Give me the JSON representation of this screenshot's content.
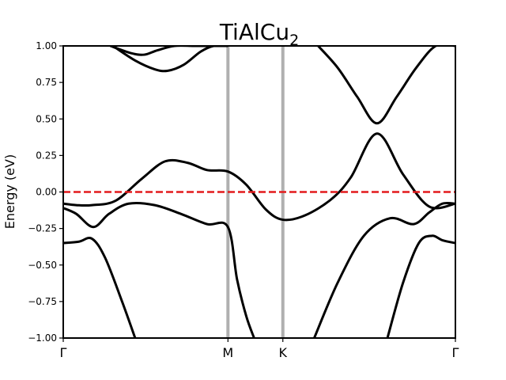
{
  "chart_data": {
    "type": "line",
    "title": "TiAlCu",
    "title_subscript": "2",
    "ylabel": "Energy (eV)",
    "xlabel": "",
    "ylim": [
      -1.0,
      1.0
    ],
    "y_ticks": [
      "1.00",
      "0.75",
      "0.50",
      "0.25",
      "0.00",
      "−0.25",
      "−0.50",
      "−0.75",
      "−1.00"
    ],
    "y_tick_values": [
      1.0,
      0.75,
      0.5,
      0.25,
      0.0,
      -0.25,
      -0.5,
      -0.75,
      -1.0
    ],
    "xlim": [
      0.0,
      3.0
    ],
    "x_ticks": [
      {
        "label": "Γ",
        "value": 0.0
      },
      {
        "label": "M",
        "value": 1.26
      },
      {
        "label": "K",
        "value": 1.68
      },
      {
        "label": "Γ",
        "value": 3.0
      }
    ],
    "fermi_level": 0.0,
    "colors": {
      "bands": "#000000",
      "fermi": "#e31a1c",
      "kpath_lines": "#b0b0b0"
    },
    "series": [
      {
        "x": [
          0.0,
          0.1,
          0.22,
          0.4,
          0.6,
          0.78,
          0.95,
          1.1,
          1.26,
          1.4,
          1.55,
          1.68,
          1.85,
          2.05,
          2.2,
          2.4,
          2.6,
          2.8,
          3.0
        ],
        "values": [
          -0.08,
          -0.09,
          -0.09,
          -0.06,
          0.09,
          0.21,
          0.2,
          0.15,
          0.14,
          0.05,
          -0.12,
          -0.19,
          -0.16,
          -0.05,
          0.1,
          0.4,
          0.12,
          -0.1,
          -0.08
        ]
      },
      {
        "x": [
          0.0,
          0.1,
          0.23,
          0.35,
          0.5,
          0.7,
          0.9,
          1.1,
          1.26,
          1.33,
          1.4,
          1.46
        ],
        "values": [
          -0.11,
          -0.15,
          -0.24,
          -0.15,
          -0.08,
          -0.09,
          -0.15,
          -0.22,
          -0.24,
          -0.6,
          -0.85,
          -1.0
        ]
      },
      {
        "x": [
          1.92,
          2.1,
          2.3,
          2.5,
          2.68,
          2.8,
          2.9,
          3.0
        ],
        "values": [
          -1.0,
          -0.62,
          -0.3,
          -0.18,
          -0.22,
          -0.14,
          -0.08,
          -0.08
        ]
      },
      {
        "x": [
          0.0,
          0.12,
          0.22,
          0.32,
          0.45,
          0.55
        ],
        "values": [
          -0.35,
          -0.34,
          -0.32,
          -0.45,
          -0.75,
          -1.0
        ]
      },
      {
        "x": [
          2.48,
          2.6,
          2.72,
          2.82,
          2.9,
          3.0
        ],
        "values": [
          -1.0,
          -0.62,
          -0.35,
          -0.3,
          -0.33,
          -0.35
        ]
      },
      {
        "x": [
          0.36,
          0.52,
          0.62,
          0.72,
          0.85,
          1.0,
          1.15,
          1.26
        ],
        "values": [
          1.0,
          0.95,
          0.94,
          0.97,
          1.0,
          1.0,
          1.0,
          1.0
        ]
      },
      {
        "x": [
          0.38,
          0.55,
          0.7,
          0.8,
          0.92,
          1.05,
          1.15,
          1.26
        ],
        "values": [
          1.0,
          0.9,
          0.84,
          0.83,
          0.87,
          0.96,
          1.0,
          1.0
        ]
      },
      {
        "x": [
          1.95,
          2.1,
          2.25,
          2.4,
          2.55,
          2.7,
          2.85,
          3.0
        ],
        "values": [
          1.0,
          0.85,
          0.65,
          0.47,
          0.65,
          0.85,
          1.0,
          1.0
        ]
      }
    ]
  }
}
